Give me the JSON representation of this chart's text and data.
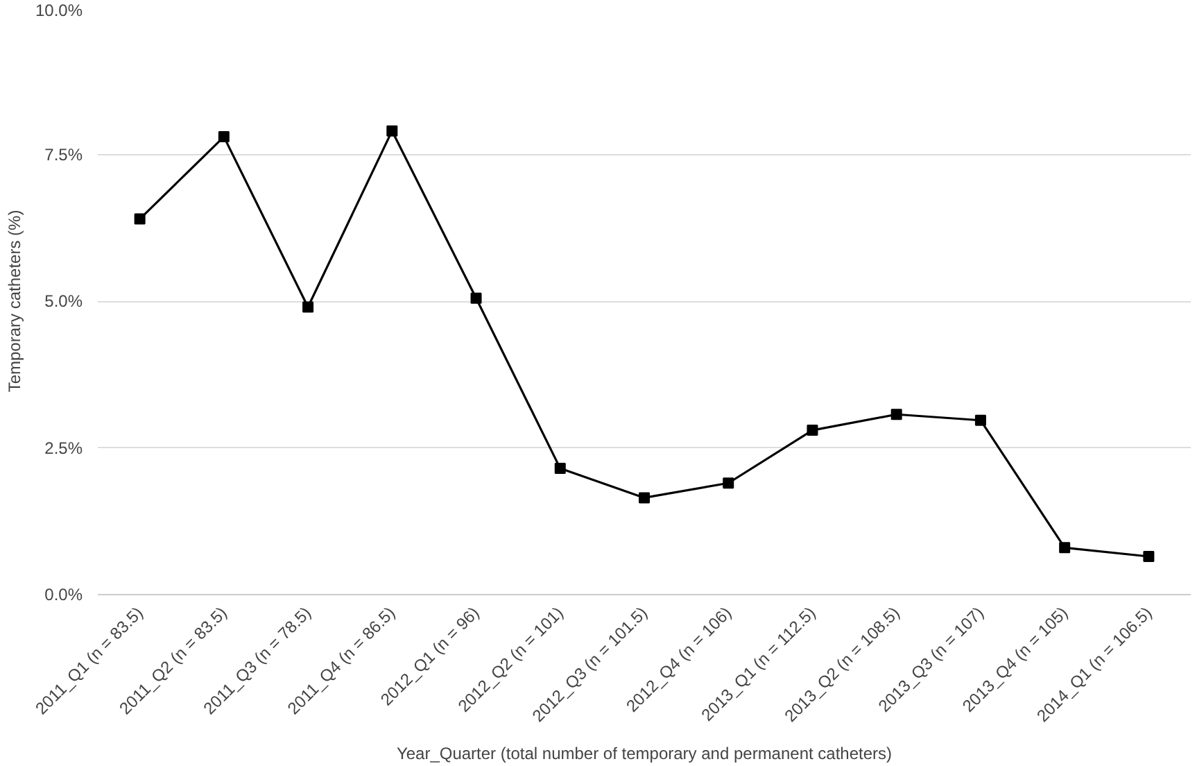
{
  "chart_data": {
    "type": "line",
    "xlabel": "Year_Quarter (total number of temporary and permanent catheters)",
    "ylabel": "Temporary catheters (%)",
    "categories": [
      "2011_Q1 (n = 83.5)",
      "2011_Q2 (n = 83.5)",
      "2011_Q3 (n = 78.5)",
      "2011_Q4 (n = 86.5)",
      "2012_Q1 (n = 96)",
      "2012_Q2 (n = 101)",
      "2012_Q3 (n = 101.5)",
      "2012_Q4 (n = 106)",
      "2013_Q1 (n = 112.5)",
      "2013_Q2 (n = 108.5)",
      "2013_Q3 (n = 107)",
      "2013_Q4 (n = 105)",
      "2014_Q1 (n = 106.5)"
    ],
    "series": [
      {
        "color": "#000000",
        "values": [
          6.4,
          7.8,
          4.9,
          7.9,
          5.05,
          2.15,
          1.65,
          1.9,
          2.8,
          3.07,
          2.97,
          0.8,
          0.65
        ]
      }
    ],
    "ylim": [
      0,
      10
    ],
    "yticks": [
      {
        "value": 0,
        "label": "0.0%"
      },
      {
        "value": 2.5,
        "label": "2.5%"
      },
      {
        "value": 5,
        "label": "5.0%"
      },
      {
        "value": 7.5,
        "label": "7.5%"
      },
      {
        "value": 10,
        "label": "10.0%"
      }
    ],
    "grid": "y",
    "marker": "square",
    "line_style": "solid"
  }
}
